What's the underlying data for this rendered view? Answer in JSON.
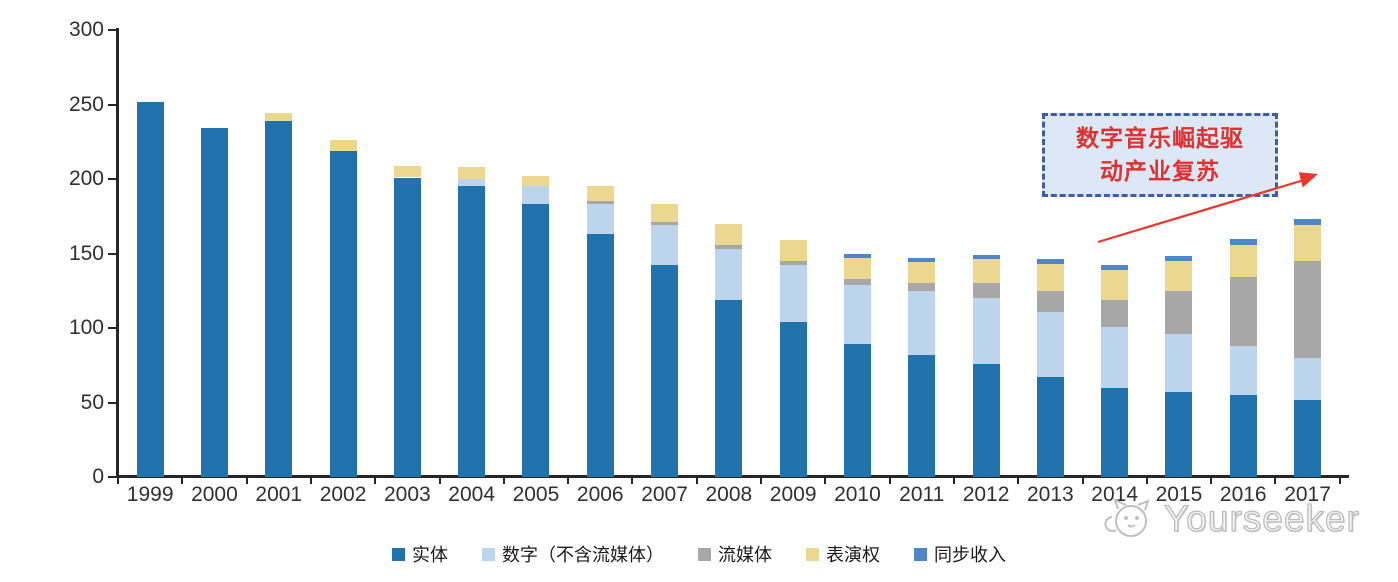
{
  "chart_data": {
    "type": "bar",
    "stacked": true,
    "categories": [
      "1999",
      "2000",
      "2001",
      "2002",
      "2003",
      "2004",
      "2005",
      "2006",
      "2007",
      "2008",
      "2009",
      "2010",
      "2011",
      "2012",
      "2013",
      "2014",
      "2015",
      "2016",
      "2017"
    ],
    "series": [
      {
        "name": "实体",
        "color": "#2272AE",
        "values": [
          252,
          234,
          239,
          219,
          201,
          195,
          183,
          163,
          142,
          119,
          104,
          89,
          82,
          76,
          67,
          60,
          57,
          55,
          52
        ]
      },
      {
        "name": "数字（不含流媒体）",
        "color": "#BCD5EC",
        "values": [
          0,
          0,
          0,
          0,
          0,
          5,
          12,
          20,
          27,
          34,
          38,
          40,
          43,
          44,
          44,
          41,
          39,
          33,
          28
        ]
      },
      {
        "name": "流媒体",
        "color": "#A7A7A7",
        "values": [
          0,
          0,
          0,
          0,
          0,
          0,
          0,
          2,
          2,
          3,
          3,
          4,
          5,
          10,
          14,
          18,
          29,
          46,
          65
        ]
      },
      {
        "name": "表演权",
        "color": "#EBD78F",
        "values": [
          0,
          0,
          5,
          7,
          8,
          8,
          7,
          10,
          12,
          14,
          14,
          14,
          14,
          16,
          18,
          20,
          20,
          22,
          24
        ]
      },
      {
        "name": "同步收入",
        "color": "#4F86C5",
        "values": [
          0,
          0,
          0,
          0,
          0,
          0,
          0,
          0,
          0,
          0,
          0,
          3,
          3,
          3,
          3,
          3,
          3,
          4,
          4
        ]
      }
    ],
    "title": "",
    "xlabel": "",
    "ylabel": "",
    "ylim": [
      0,
      300
    ],
    "y_ticks": [
      0,
      50,
      100,
      150,
      200,
      250,
      300
    ],
    "grid": false,
    "legend_position": "bottom"
  },
  "annotation": {
    "line1": "数字音乐崛起驱",
    "line2": "动产业复苏",
    "text_color": "#E03131",
    "box_fill": "#DCE8F6",
    "box_border": "#3D5EA6",
    "arrow_color": "#E8372C"
  },
  "watermark": {
    "text": "Yourseeker",
    "logo": "mascot-face-icon"
  }
}
